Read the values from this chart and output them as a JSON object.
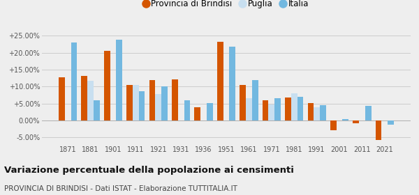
{
  "years": [
    1871,
    1881,
    1901,
    1911,
    1921,
    1931,
    1936,
    1951,
    1961,
    1971,
    1981,
    1991,
    2001,
    2011,
    2021
  ],
  "brindisi": [
    12.8,
    13.2,
    20.5,
    10.5,
    12.0,
    12.2,
    4.0,
    23.2,
    10.5,
    6.0,
    6.8,
    5.1,
    -2.8,
    -0.7,
    -5.8
  ],
  "puglia": [
    null,
    11.8,
    null,
    10.5,
    7.8,
    null,
    null,
    null,
    6.5,
    4.8,
    8.0,
    4.0,
    null,
    null,
    null
  ],
  "italia": [
    23.0,
    6.0,
    23.8,
    8.7,
    10.0,
    6.0,
    5.2,
    21.8,
    12.0,
    6.6,
    7.1,
    4.5,
    0.5,
    4.3,
    -1.2
  ],
  "color_brindisi": "#d45500",
  "color_puglia": "#c8dff0",
  "color_italia": "#72b8e0",
  "title": "Variazione percentuale della popolazione ai censimenti",
  "subtitle": "PROVINCIA DI BRINDISI - Dati ISTAT - Elaborazione TUTTITALIA.IT",
  "ylim_min": -7,
  "ylim_max": 27.5,
  "yticks": [
    -5.0,
    0.0,
    5.0,
    10.0,
    15.0,
    20.0,
    25.0
  ],
  "ytick_labels": [
    "-5.00%",
    "0.00%",
    "+5.00%",
    "+10.00%",
    "+15.00%",
    "+20.00%",
    "+25.00%"
  ],
  "legend_labels": [
    "Provincia di Brindisi",
    "Puglia",
    "Italia"
  ],
  "bg_color": "#eeeeee"
}
